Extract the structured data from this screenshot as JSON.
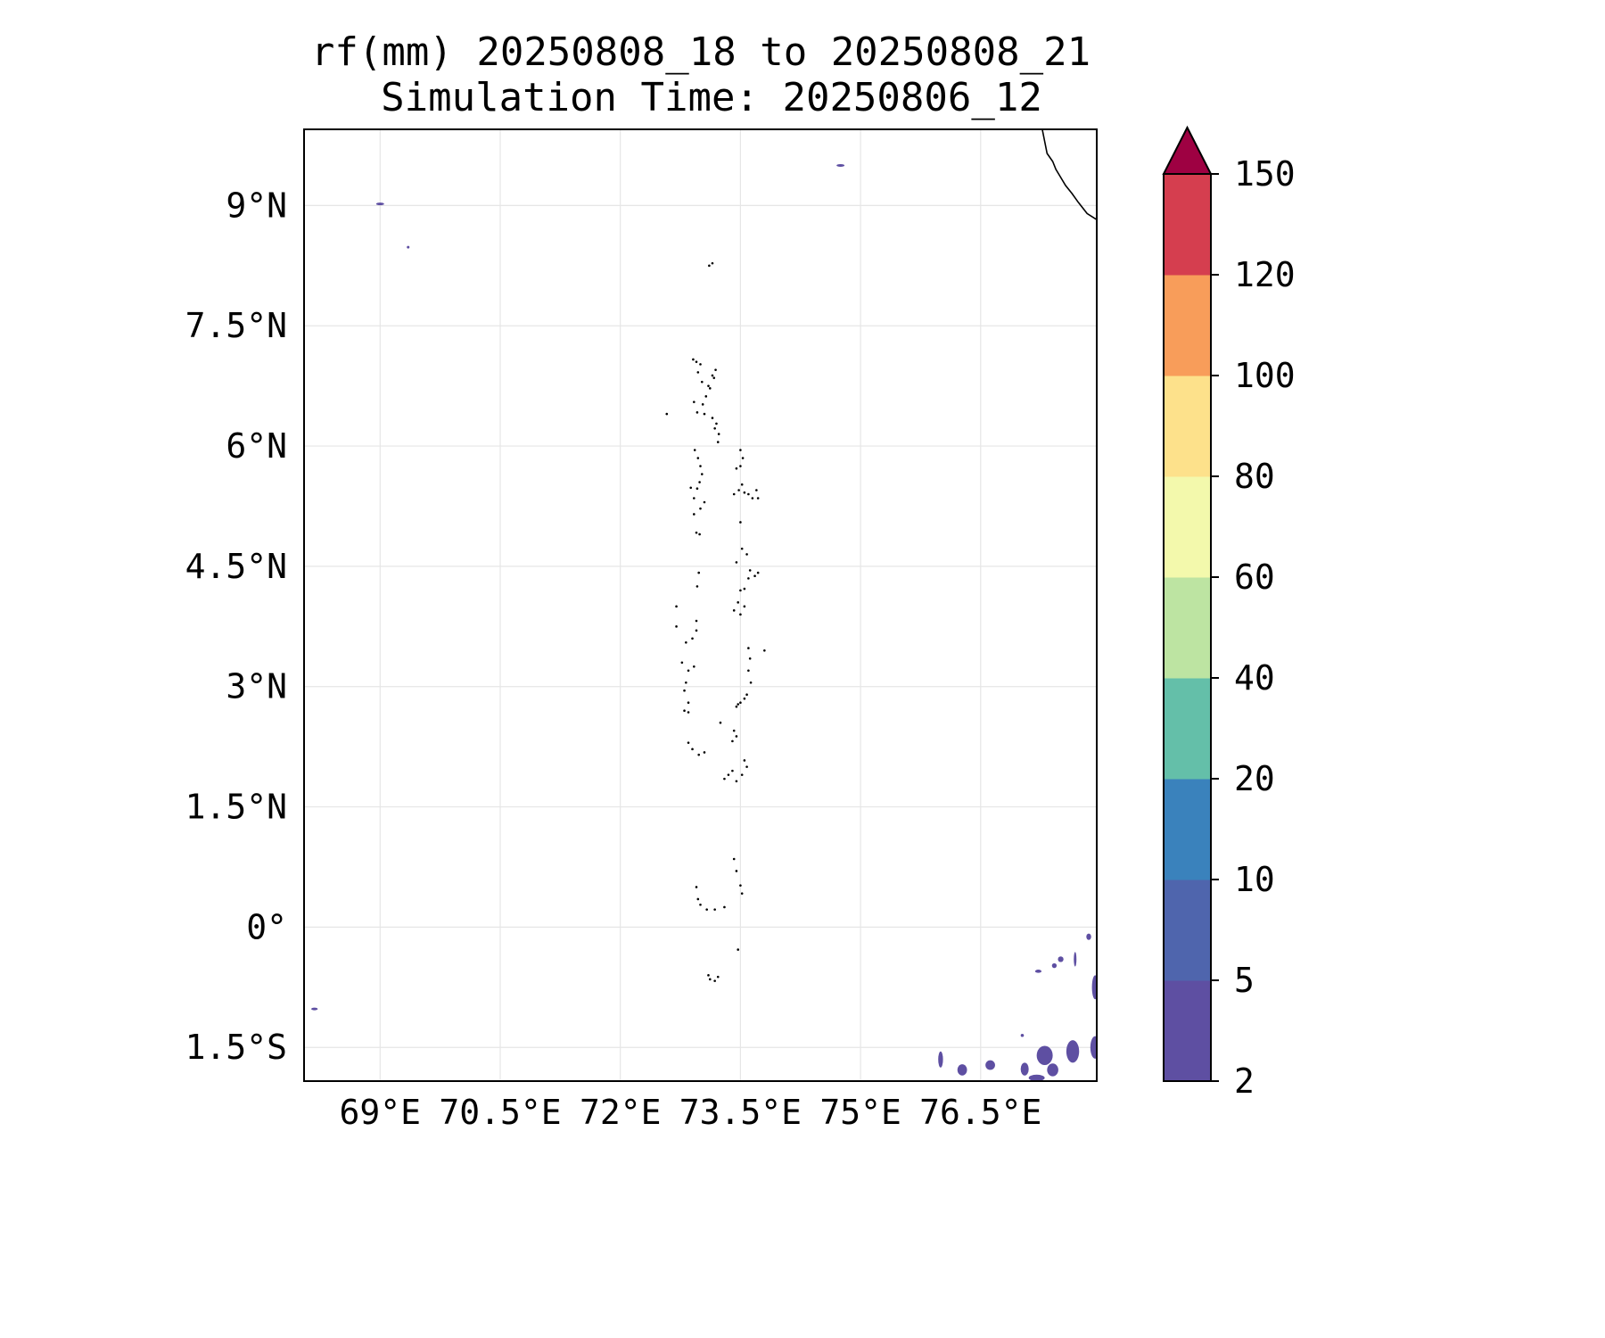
{
  "map": {
    "title": {
      "line1": "rf(mm) 20250808_18 to 20250808_21",
      "line2": "Simulation Time: 20250806_12"
    },
    "extent": {
      "lon_min": 68.05,
      "lon_max": 77.95,
      "lat_min": -1.92,
      "lat_max": 9.95
    },
    "grid": true,
    "x_ticks": [
      {
        "value": 69.0,
        "label": "69°E"
      },
      {
        "value": 70.5,
        "label": "70.5°E"
      },
      {
        "value": 72.0,
        "label": "72°E"
      },
      {
        "value": 73.5,
        "label": "73.5°E"
      },
      {
        "value": 75.0,
        "label": "75°E"
      },
      {
        "value": 76.5,
        "label": "76.5°E"
      }
    ],
    "y_ticks": [
      {
        "value": 9.0,
        "label": "9°N"
      },
      {
        "value": 7.5,
        "label": "7.5°N"
      },
      {
        "value": 6.0,
        "label": "6°N"
      },
      {
        "value": 4.5,
        "label": "4.5°N"
      },
      {
        "value": 3.0,
        "label": "3°N"
      },
      {
        "value": 1.5,
        "label": "1.5°N"
      },
      {
        "value": 0.0,
        "label": "0°"
      },
      {
        "value": -1.5,
        "label": "1.5°S"
      }
    ],
    "colorbar": {
      "bounds": [
        2,
        5,
        10,
        20,
        40,
        60,
        80,
        100,
        120,
        150
      ],
      "labels": [
        "2",
        "5",
        "10",
        "20",
        "40",
        "60",
        "80",
        "100",
        "120",
        "150"
      ],
      "colors": [
        "#5e4fa2",
        "#4f65ad",
        "#3a82bc",
        "#64bfa9",
        "#bde4a2",
        "#f3f9ac",
        "#fde18b",
        "#f89d5a",
        "#d53e4f"
      ],
      "extend_color": "#9e0142",
      "extend": "max"
    },
    "coastline_color": "#000000",
    "coastline": {
      "india_tip": [
        [
          77.27,
          9.95
        ],
        [
          77.3,
          9.8
        ],
        [
          77.33,
          9.65
        ],
        [
          77.4,
          9.55
        ],
        [
          77.44,
          9.45
        ],
        [
          77.5,
          9.35
        ],
        [
          77.56,
          9.25
        ],
        [
          77.64,
          9.15
        ],
        [
          77.72,
          9.04
        ],
        [
          77.83,
          8.9
        ],
        [
          77.94,
          8.83
        ],
        [
          78.05,
          8.77
        ],
        [
          78.17,
          8.7
        ],
        [
          78.28,
          8.63
        ],
        [
          78.38,
          8.52
        ],
        [
          78.42,
          8.45
        ],
        [
          78.55,
          8.35
        ],
        [
          78.75,
          8.25
        ],
        [
          79.0,
          8.2
        ],
        [
          79.1,
          8.3
        ],
        [
          79.2,
          8.32
        ],
        [
          79.35,
          8.4
        ],
        [
          79.5,
          8.5
        ]
      ],
      "islands": [
        [
          73.11,
          8.25
        ],
        [
          73.15,
          8.28
        ],
        [
          72.91,
          7.08
        ],
        [
          72.95,
          7.05
        ],
        [
          73.0,
          7.02
        ],
        [
          72.97,
          6.92
        ],
        [
          73.02,
          6.8
        ],
        [
          73.1,
          6.75
        ],
        [
          73.15,
          6.88
        ],
        [
          73.19,
          6.95
        ],
        [
          73.17,
          6.85
        ],
        [
          73.12,
          6.72
        ],
        [
          73.07,
          6.62
        ],
        [
          73.03,
          6.52
        ],
        [
          72.92,
          6.55
        ],
        [
          72.96,
          6.42
        ],
        [
          73.05,
          6.4
        ],
        [
          73.15,
          6.35
        ],
        [
          73.2,
          6.28
        ],
        [
          73.23,
          6.15
        ],
        [
          73.22,
          6.05
        ],
        [
          73.18,
          6.22
        ],
        [
          72.58,
          6.4
        ],
        [
          72.93,
          5.95
        ],
        [
          72.97,
          5.85
        ],
        [
          73.0,
          5.75
        ],
        [
          73.02,
          5.65
        ],
        [
          72.99,
          5.55
        ],
        [
          72.88,
          5.48
        ],
        [
          72.96,
          5.47
        ],
        [
          72.92,
          5.35
        ],
        [
          73.0,
          5.22
        ],
        [
          73.05,
          5.3
        ],
        [
          72.92,
          5.15
        ],
        [
          72.95,
          4.92
        ],
        [
          72.99,
          4.9
        ],
        [
          73.5,
          5.95
        ],
        [
          73.53,
          5.85
        ],
        [
          73.5,
          5.75
        ],
        [
          73.45,
          5.72
        ],
        [
          73.42,
          5.4
        ],
        [
          73.48,
          5.45
        ],
        [
          73.55,
          5.42
        ],
        [
          73.6,
          5.4
        ],
        [
          73.65,
          5.35
        ],
        [
          73.7,
          5.45
        ],
        [
          73.72,
          5.35
        ],
        [
          73.52,
          5.52
        ],
        [
          73.5,
          5.05
        ],
        [
          73.52,
          4.72
        ],
        [
          73.58,
          4.65
        ],
        [
          73.45,
          4.55
        ],
        [
          73.62,
          4.45
        ],
        [
          73.68,
          4.38
        ],
        [
          73.72,
          4.42
        ],
        [
          73.6,
          4.35
        ],
        [
          73.55,
          4.22
        ],
        [
          73.5,
          4.2
        ],
        [
          73.47,
          4.05
        ],
        [
          73.42,
          3.95
        ],
        [
          73.5,
          3.9
        ],
        [
          73.55,
          4.0
        ],
        [
          72.98,
          4.42
        ],
        [
          72.96,
          4.25
        ],
        [
          72.7,
          4.0
        ],
        [
          72.7,
          3.75
        ],
        [
          72.82,
          3.55
        ],
        [
          72.9,
          3.6
        ],
        [
          72.95,
          3.7
        ],
        [
          72.95,
          3.82
        ],
        [
          72.77,
          3.3
        ],
        [
          72.85,
          3.2
        ],
        [
          72.92,
          3.25
        ],
        [
          72.82,
          3.05
        ],
        [
          72.8,
          2.95
        ],
        [
          72.85,
          2.8
        ],
        [
          72.8,
          2.7
        ],
        [
          72.85,
          2.68
        ],
        [
          73.6,
          3.48
        ],
        [
          73.62,
          3.35
        ],
        [
          73.6,
          3.2
        ],
        [
          73.63,
          3.05
        ],
        [
          73.58,
          2.9
        ],
        [
          73.55,
          2.85
        ],
        [
          73.5,
          2.8
        ],
        [
          73.45,
          2.75
        ],
        [
          73.47,
          2.78
        ],
        [
          73.8,
          3.45
        ],
        [
          73.42,
          2.45
        ],
        [
          73.45,
          2.38
        ],
        [
          73.4,
          2.32
        ],
        [
          73.25,
          2.55
        ],
        [
          72.85,
          2.3
        ],
        [
          72.9,
          2.22
        ],
        [
          72.98,
          2.15
        ],
        [
          73.05,
          2.18
        ],
        [
          73.55,
          2.08
        ],
        [
          73.58,
          2.0
        ],
        [
          73.52,
          1.9
        ],
        [
          73.45,
          1.82
        ],
        [
          73.4,
          1.95
        ],
        [
          73.35,
          1.9
        ],
        [
          73.3,
          1.85
        ],
        [
          73.42,
          0.85
        ],
        [
          73.45,
          0.7
        ],
        [
          73.5,
          0.52
        ],
        [
          73.52,
          0.42
        ],
        [
          72.95,
          0.5
        ],
        [
          72.97,
          0.35
        ],
        [
          73.0,
          0.28
        ],
        [
          73.08,
          0.22
        ],
        [
          73.18,
          0.22
        ],
        [
          73.3,
          0.25
        ],
        [
          73.47,
          -0.28
        ],
        [
          73.1,
          -0.6
        ],
        [
          73.12,
          -0.65
        ],
        [
          73.18,
          -0.67
        ],
        [
          73.22,
          -0.62
        ]
      ]
    },
    "rain_patches": [
      {
        "lat": 9.02,
        "lon": 69.0,
        "rx": 0.05,
        "ry": 0.012,
        "value": 3
      },
      {
        "lat": 8.48,
        "lon": 69.35,
        "rx": 0.015,
        "ry": 0.012,
        "value": 3
      },
      {
        "lat": 9.5,
        "lon": 74.75,
        "rx": 0.05,
        "ry": 0.012,
        "value": 3
      },
      {
        "lat": -1.02,
        "lon": 68.18,
        "rx": 0.04,
        "ry": 0.012,
        "value": 3
      },
      {
        "lat": -1.78,
        "lon": 76.27,
        "rx": 0.06,
        "ry": 0.07,
        "value": 3
      },
      {
        "lat": -1.65,
        "lon": 76.0,
        "rx": 0.03,
        "ry": 0.1,
        "value": 3
      },
      {
        "lat": -1.72,
        "lon": 76.62,
        "rx": 0.06,
        "ry": 0.06,
        "value": 3
      },
      {
        "lat": -1.77,
        "lon": 77.05,
        "rx": 0.05,
        "ry": 0.08,
        "value": 3
      },
      {
        "lat": -1.6,
        "lon": 77.3,
        "rx": 0.1,
        "ry": 0.12,
        "value": 3
      },
      {
        "lat": -1.78,
        "lon": 77.4,
        "rx": 0.07,
        "ry": 0.08,
        "value": 3
      },
      {
        "lat": -1.55,
        "lon": 77.65,
        "rx": 0.08,
        "ry": 0.14,
        "value": 3
      },
      {
        "lat": -1.5,
        "lon": 77.93,
        "rx": 0.06,
        "ry": 0.14,
        "value": 3
      },
      {
        "lat": -1.88,
        "lon": 77.2,
        "rx": 0.1,
        "ry": 0.04,
        "value": 3
      },
      {
        "lat": -1.35,
        "lon": 77.02,
        "rx": 0.02,
        "ry": 0.02,
        "value": 3
      },
      {
        "lat": -0.75,
        "lon": 77.93,
        "rx": 0.04,
        "ry": 0.15,
        "value": 3
      },
      {
        "lat": -0.4,
        "lon": 77.5,
        "rx": 0.035,
        "ry": 0.035,
        "value": 3
      },
      {
        "lat": -0.48,
        "lon": 77.42,
        "rx": 0.03,
        "ry": 0.03,
        "value": 3
      },
      {
        "lat": -0.12,
        "lon": 77.85,
        "rx": 0.03,
        "ry": 0.04,
        "value": 3
      },
      {
        "lat": -0.4,
        "lon": 77.68,
        "rx": 0.015,
        "ry": 0.09,
        "value": 3
      },
      {
        "lat": -0.55,
        "lon": 77.22,
        "rx": 0.04,
        "ry": 0.02,
        "value": 3
      }
    ]
  }
}
